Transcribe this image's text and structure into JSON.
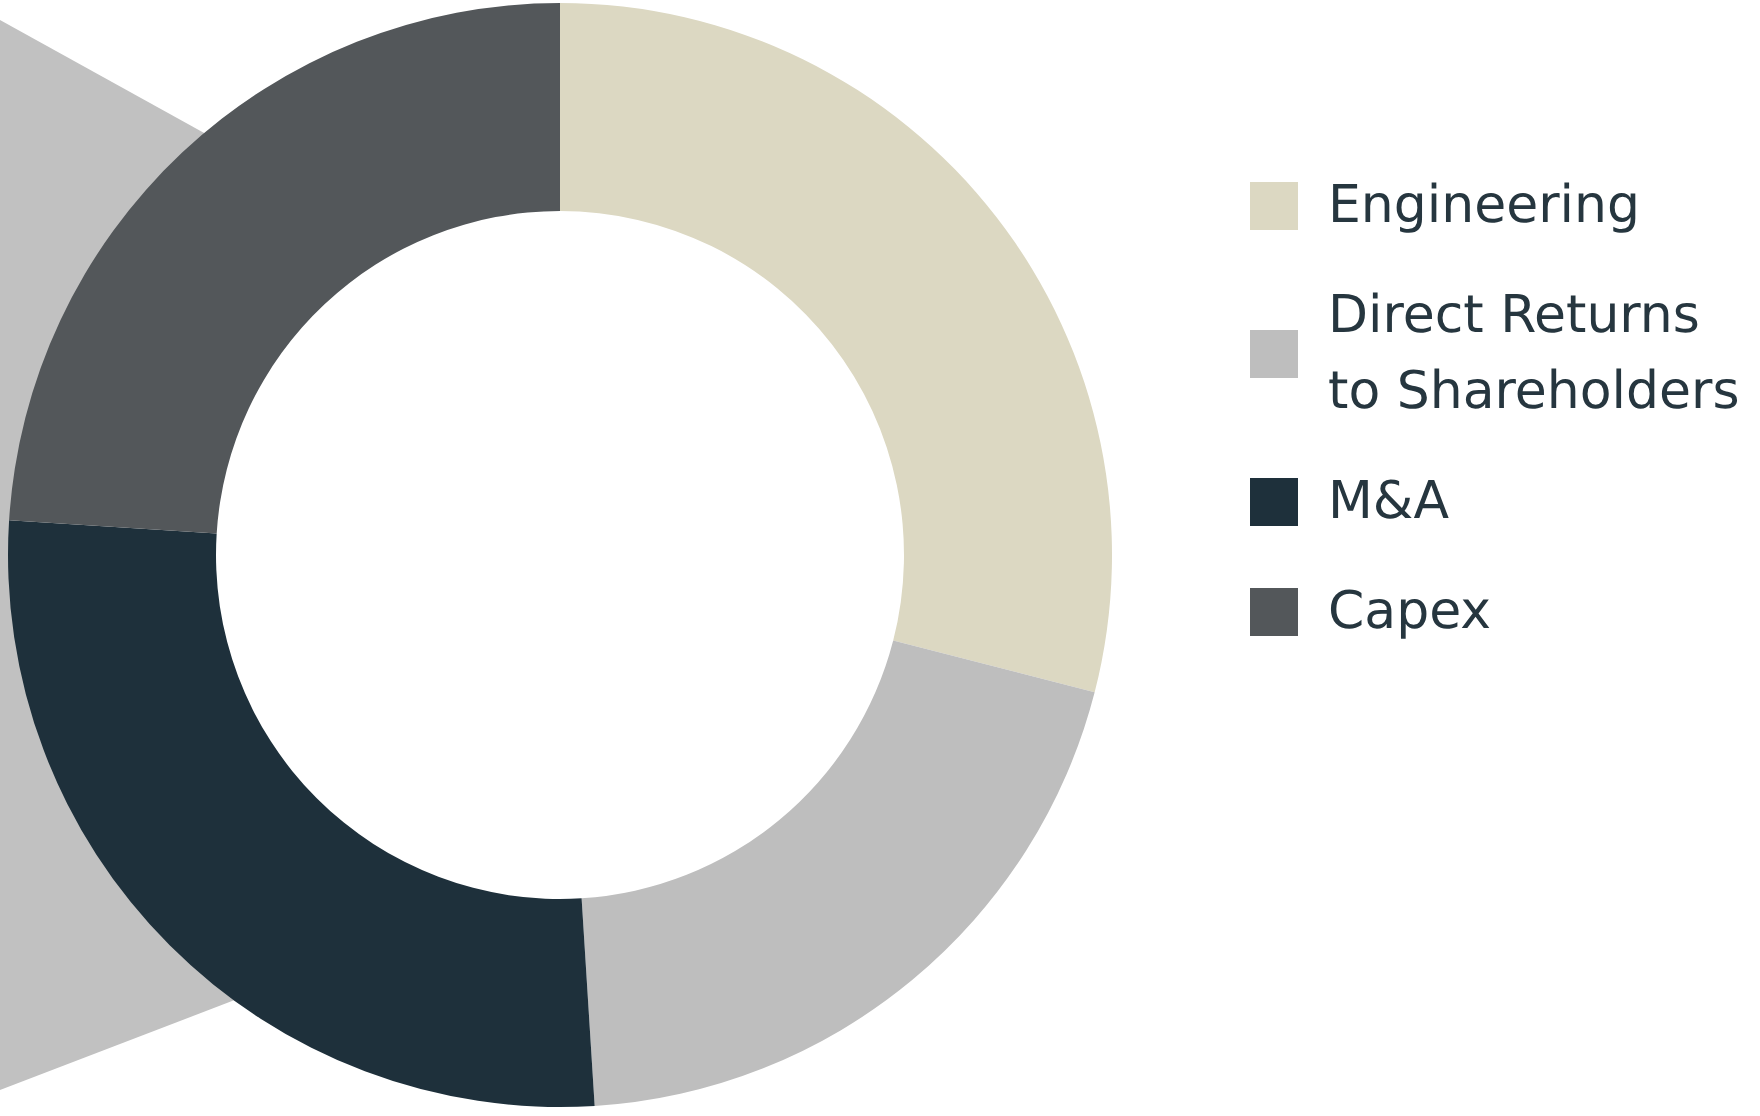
{
  "chart_data": {
    "type": "donut",
    "categories": [
      "Engineering",
      "Direct Returns to Shareholders",
      "M&A",
      "Capex"
    ],
    "values": [
      29,
      20,
      27,
      24
    ],
    "colors": [
      "#dcd8c2",
      "#bebebe",
      "#1e303b",
      "#53575a"
    ],
    "legend": "right"
  }
}
